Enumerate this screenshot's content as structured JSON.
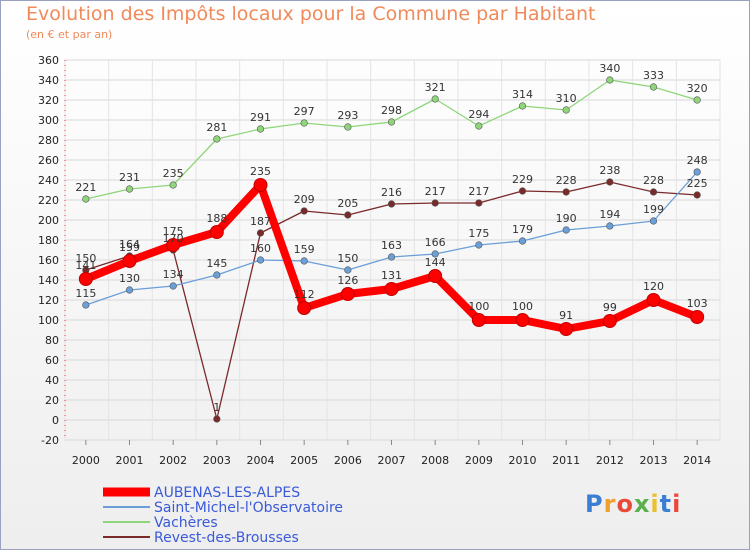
{
  "title": "Evolution des Impôts locaux pour la Commune par Habitant",
  "subtitle": "(en € et par an)",
  "logo": {
    "text": "Proxiti",
    "colors": [
      "#3b7fd4",
      "#f0a030",
      "#e84a3a",
      "#5ab04a",
      "#e8c030",
      "#3b7fd4",
      "#e84a3a"
    ]
  },
  "chart_data": {
    "type": "line",
    "x": [
      2000,
      2001,
      2002,
      2003,
      2004,
      2005,
      2006,
      2007,
      2008,
      2009,
      2010,
      2011,
      2012,
      2013,
      2014
    ],
    "ylim": [
      -20,
      360
    ],
    "yticks": [
      -20,
      0,
      20,
      40,
      60,
      80,
      100,
      120,
      140,
      160,
      180,
      200,
      220,
      240,
      260,
      280,
      300,
      320,
      340,
      360
    ],
    "grid": true,
    "legend": "bottom-left",
    "series": [
      {
        "name": "Vachères",
        "color": "#8fd67a",
        "values": [
          221,
          231,
          235,
          281,
          291,
          297,
          293,
          298,
          321,
          294,
          314,
          310,
          340,
          333,
          320
        ]
      },
      {
        "name": "Revest-des-Brousses",
        "color": "#7a2a2a",
        "values": [
          150,
          164,
          170,
          1,
          187,
          209,
          205,
          216,
          217,
          217,
          229,
          228,
          238,
          228,
          225
        ]
      },
      {
        "name": "Saint-Michel-l'Observatoire",
        "color": "#6a9fd8",
        "values": [
          115,
          130,
          134,
          145,
          160,
          159,
          150,
          163,
          166,
          175,
          179,
          190,
          194,
          199,
          248
        ]
      },
      {
        "name": "AUBENAS-LES-ALPES",
        "color": "#ff0000",
        "values": [
          141,
          159,
          175,
          188,
          235,
          112,
          126,
          131,
          144,
          100,
          100,
          91,
          99,
          120,
          103
        ]
      }
    ]
  }
}
